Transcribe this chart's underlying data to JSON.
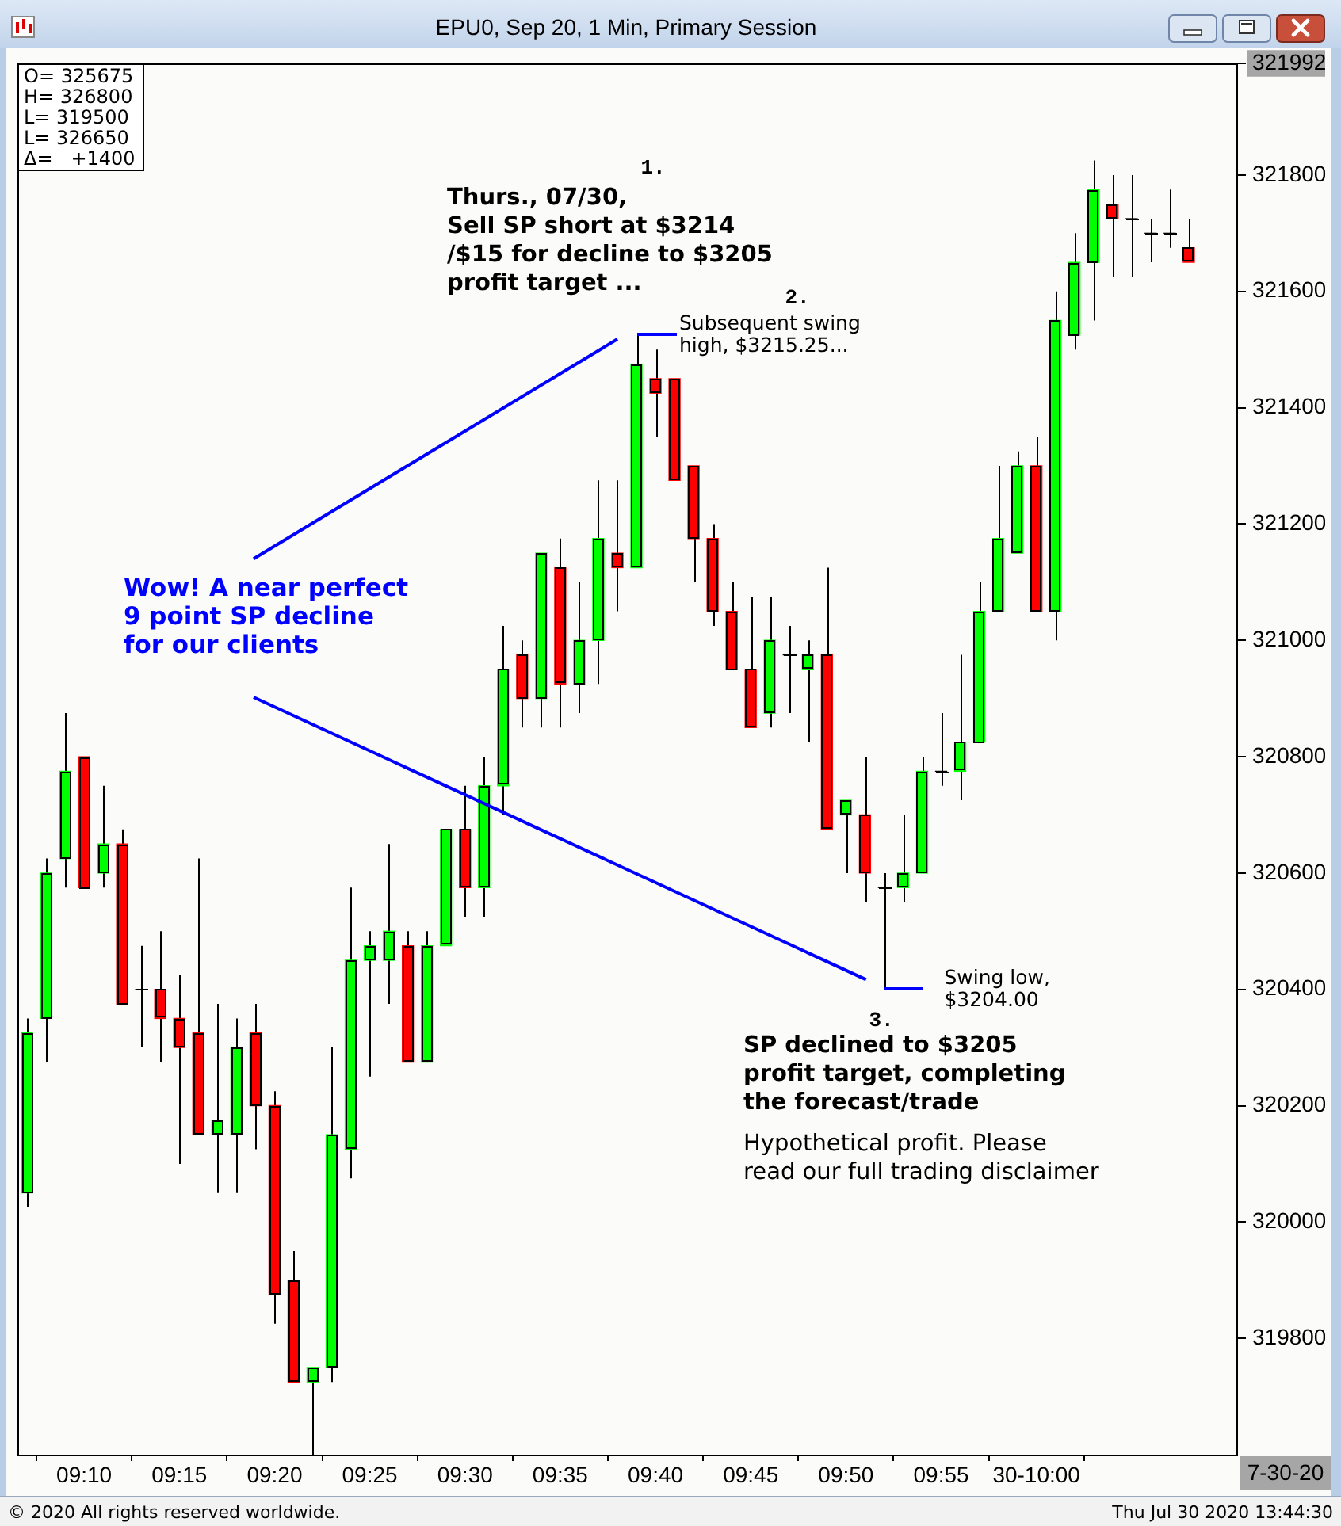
{
  "chart_data": {
    "type": "candlestick",
    "title": "EPU0, Sep 20, 1 Min, Primary Session",
    "x": [
      "2020-07-30T09:07",
      "2020-07-30T09:08",
      "2020-07-30T09:09",
      "2020-07-30T09:10",
      "2020-07-30T09:11",
      "2020-07-30T09:12",
      "2020-07-30T09:13",
      "2020-07-30T09:14",
      "2020-07-30T09:15",
      "2020-07-30T09:16",
      "2020-07-30T09:17",
      "2020-07-30T09:18",
      "2020-07-30T09:19",
      "2020-07-30T09:20",
      "2020-07-30T09:21",
      "2020-07-30T09:22",
      "2020-07-30T09:23",
      "2020-07-30T09:24",
      "2020-07-30T09:25",
      "2020-07-30T09:26",
      "2020-07-30T09:27",
      "2020-07-30T09:28",
      "2020-07-30T09:29",
      "2020-07-30T09:30",
      "2020-07-30T09:31",
      "2020-07-30T09:32",
      "2020-07-30T09:33",
      "2020-07-30T09:34",
      "2020-07-30T09:35",
      "2020-07-30T09:36",
      "2020-07-30T09:37",
      "2020-07-30T09:38",
      "2020-07-30T09:39",
      "2020-07-30T09:40",
      "2020-07-30T09:41",
      "2020-07-30T09:42",
      "2020-07-30T09:43",
      "2020-07-30T09:44",
      "2020-07-30T09:45",
      "2020-07-30T09:46",
      "2020-07-30T09:47",
      "2020-07-30T09:48",
      "2020-07-30T09:49",
      "2020-07-30T09:50",
      "2020-07-30T09:51",
      "2020-07-30T09:52",
      "2020-07-30T09:53",
      "2020-07-30T09:54",
      "2020-07-30T09:55",
      "2020-07-30T09:56",
      "2020-07-30T09:57",
      "2020-07-30T09:58",
      "2020-07-30T09:59",
      "2020-07-30T10:00",
      "2020-07-30T10:01",
      "2020-07-30T10:02",
      "2020-07-30T10:03",
      "2020-07-30T10:04",
      "2020-07-30T10:05",
      "2020-07-30T10:06",
      "2020-07-30T10:07",
      "2020-07-30T10:08"
    ],
    "ohlc": [
      [
        320050,
        320350,
        320025,
        320325
      ],
      [
        320350,
        320625,
        320275,
        320600
      ],
      [
        320625,
        320875,
        320575,
        320775
      ],
      [
        320800,
        320800,
        320575,
        320575
      ],
      [
        320600,
        320750,
        320575,
        320650
      ],
      [
        320650,
        320675,
        320375,
        320375
      ],
      [
        320400,
        320475,
        320300,
        320400
      ],
      [
        320400,
        320500,
        320275,
        320350
      ],
      [
        320350,
        320425,
        320100,
        320300
      ],
      [
        320325,
        320625,
        320150,
        320150
      ],
      [
        320150,
        320375,
        320050,
        320175
      ],
      [
        320150,
        320350,
        320050,
        320300
      ],
      [
        320325,
        320375,
        320125,
        320200
      ],
      [
        320200,
        320225,
        319825,
        319875
      ],
      [
        319900,
        319950,
        319725,
        319725
      ],
      [
        319725,
        319750,
        319600,
        319750
      ],
      [
        319750,
        320300,
        319725,
        320150
      ],
      [
        320125,
        320575,
        320075,
        320450
      ],
      [
        320450,
        320500,
        320250,
        320475
      ],
      [
        320450,
        320650,
        320375,
        320500
      ],
      [
        320475,
        320500,
        320275,
        320275
      ],
      [
        320275,
        320500,
        320275,
        320475
      ],
      [
        320475,
        320675,
        320475,
        320675
      ],
      [
        320675,
        320750,
        320525,
        320575
      ],
      [
        320575,
        320800,
        320525,
        320750
      ],
      [
        320750,
        321025,
        320700,
        320950
      ],
      [
        320975,
        321000,
        320850,
        320900
      ],
      [
        320900,
        321150,
        320850,
        321150
      ],
      [
        321125,
        321175,
        320850,
        320925
      ],
      [
        320925,
        321100,
        320875,
        321000
      ],
      [
        321000,
        321275,
        320925,
        321175
      ],
      [
        321150,
        321275,
        321050,
        321125
      ],
      [
        321125,
        321525,
        321125,
        321475
      ],
      [
        321450,
        321500,
        321350,
        321425
      ],
      [
        321450,
        321450,
        321275,
        321275
      ],
      [
        321300,
        321300,
        321100,
        321175
      ],
      [
        321175,
        321200,
        321025,
        321050
      ],
      [
        321050,
        321100,
        320950,
        320950
      ],
      [
        320950,
        321075,
        320850,
        320850
      ],
      [
        320875,
        321075,
        320850,
        321000
      ],
      [
        320975,
        321025,
        320875,
        320975
      ],
      [
        320950,
        321000,
        320825,
        320975
      ],
      [
        320975,
        321125,
        320675,
        320675
      ],
      [
        320700,
        320725,
        320600,
        320725
      ],
      [
        320700,
        320800,
        320550,
        320600
      ],
      [
        320575,
        320600,
        320400,
        320575
      ],
      [
        320575,
        320700,
        320550,
        320600
      ],
      [
        320600,
        320800,
        320600,
        320775
      ],
      [
        320775,
        320875,
        320750,
        320775
      ],
      [
        320775,
        320975,
        320725,
        320825
      ],
      [
        320825,
        321100,
        320825,
        321050
      ],
      [
        321050,
        321300,
        321050,
        321175
      ],
      [
        321150,
        321325,
        321150,
        321300
      ],
      [
        321300,
        321350,
        321050,
        321050
      ],
      [
        321050,
        321600,
        321000,
        321550
      ],
      [
        321525,
        321700,
        321500,
        321650
      ],
      [
        321650,
        321825,
        321550,
        321775
      ],
      [
        321750,
        321800,
        321625,
        321725
      ],
      [
        321725,
        321800,
        321625,
        321725
      ],
      [
        321700,
        321725,
        321650,
        321700
      ],
      [
        321700,
        321775,
        321675,
        321700
      ],
      [
        321675,
        321725,
        321650,
        321650
      ]
    ],
    "colors": [
      "#00ff00",
      "#00ff00",
      "#00ff00",
      "#ff0000",
      "#00ff00",
      "#ff0000",
      "#000000",
      "#ff0000",
      "#ff0000",
      "#ff0000",
      "#00ff00",
      "#00ff00",
      "#ff0000",
      "#ff0000",
      "#ff0000",
      "#00ff00",
      "#00ff00",
      "#00ff00",
      "#00ff00",
      "#00ff00",
      "#ff0000",
      "#00ff00",
      "#00ff00",
      "#ff0000",
      "#00ff00",
      "#00ff00",
      "#ff0000",
      "#00ff00",
      "#ff0000",
      "#00ff00",
      "#00ff00",
      "#ff0000",
      "#00ff00",
      "#ff0000",
      "#ff0000",
      "#ff0000",
      "#ff0000",
      "#ff0000",
      "#ff0000",
      "#00ff00",
      "#000000",
      "#00ff00",
      "#ff0000",
      "#00ff00",
      "#ff0000",
      "#000000",
      "#00ff00",
      "#00ff00",
      "#000000",
      "#00ff00",
      "#00ff00",
      "#00ff00",
      "#00ff00",
      "#ff0000",
      "#00ff00",
      "#00ff00",
      "#00ff00",
      "#ff0000",
      "#000000",
      "#000000",
      "#000000",
      "#ff0000"
    ],
    "xlim": [
      "2020-07-30T09:06:30",
      "2020-07-30T10:10:30"
    ],
    "xticks": [
      {
        "value": "2020-07-30T09:10",
        "label": "09:10"
      },
      {
        "value": "2020-07-30T09:15",
        "label": "09:15"
      },
      {
        "value": "2020-07-30T09:20",
        "label": "09:20"
      },
      {
        "value": "2020-07-30T09:25",
        "label": "09:25"
      },
      {
        "value": "2020-07-30T09:30",
        "label": "09:30"
      },
      {
        "value": "2020-07-30T09:35",
        "label": "09:35"
      },
      {
        "value": "2020-07-30T09:40",
        "label": "09:40"
      },
      {
        "value": "2020-07-30T09:45",
        "label": "09:45"
      },
      {
        "value": "2020-07-30T09:50",
        "label": "09:50"
      },
      {
        "value": "2020-07-30T09:55",
        "label": "09:55"
      },
      {
        "value": "2020-07-30T10:00",
        "label": "30-10:00"
      }
    ],
    "ylim": [
      319600,
      321992
    ],
    "yticks": [
      319800,
      320000,
      320200,
      320400,
      320600,
      320800,
      321000,
      321200,
      321400,
      321600,
      321800,
      321992
    ],
    "annotations": [
      "O= 325675",
      "H= 326800",
      "L= 319500",
      "L= 326650",
      "Δ=   +1400",
      "1.",
      "Thurs., 07/30,\nSell SP short at $3214\n/$15 for decline to $3205\nprofit target ...",
      "2.",
      {
        "text": "Subsequent swing\nhigh, $3215.25...",
        "x": "2020-07-30T09:39",
        "y": 321525
      },
      "Wow! A near perfect\n9 point SP decline\nfor our clients",
      {
        "text": "Swing low,\n$3204.00",
        "x": "2020-07-30T09:52",
        "y": 320400
      },
      "3.",
      "SP declined to $3205\nprofit target, completing\nthe forecast/trade",
      "Hypothetical profit.  Please\nread our full trading disclaimer",
      "7-30-20",
      "© 2020 All rights reserved worldwide.",
      "Thu Jul 30 2020 13:44:30"
    ]
  }
}
